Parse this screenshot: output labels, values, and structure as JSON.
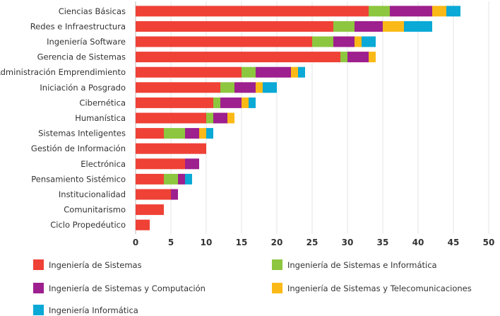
{
  "chart_data": {
    "type": "bar",
    "orientation": "horizontal",
    "stacked": true,
    "categories": [
      "Ciencias Básicas",
      "Redes e Infraestructura",
      "Ingeniería Software",
      "Gerencia de Sistemas",
      "Administración Emprendimiento",
      "Iniciación a Posgrado",
      "Cibernética",
      "Humanística",
      "Sistemas Inteligentes",
      "Gestión de Información",
      "Electrónica",
      "Pensamiento Sistémico",
      "Institucionalidad",
      "Comunitarismo",
      "Ciclo Propedéutico"
    ],
    "series": [
      {
        "name": "Ingeniería de Sistemas",
        "color": "#ef4136",
        "values": [
          33,
          28,
          25,
          29,
          15,
          12,
          11,
          10,
          4,
          10,
          7,
          4,
          5,
          4,
          2
        ]
      },
      {
        "name": "Ingeniería de Sistemas e Informática",
        "color": "#8dc63f",
        "values": [
          3,
          3,
          3,
          1,
          2,
          2,
          1,
          1,
          3,
          0,
          0,
          2,
          0,
          0,
          0
        ]
      },
      {
        "name": "Ingeniería de Sistemas y Computación",
        "color": "#9e1f8e",
        "values": [
          6,
          4,
          3,
          3,
          5,
          3,
          3,
          2,
          2,
          0,
          2,
          1,
          1,
          0,
          0
        ]
      },
      {
        "name": "Ingeniería de Sistemas y Telecomunicaciones",
        "color": "#fbb917",
        "values": [
          2,
          3,
          1,
          1,
          1,
          1,
          1,
          1,
          1,
          0,
          0,
          0,
          0,
          0,
          0
        ]
      },
      {
        "name": "Ingeniería Informática",
        "color": "#0aa9d6",
        "values": [
          2,
          4,
          2,
          0,
          1,
          2,
          1,
          0,
          1,
          0,
          0,
          1,
          0,
          0,
          0
        ]
      }
    ],
    "xlim": [
      0,
      50
    ],
    "xticks": [
      "0",
      "5",
      "10",
      "15",
      "20",
      "25",
      "30",
      "35",
      "40",
      "45",
      "50"
    ],
    "grid": true,
    "legend_position": "bottom"
  }
}
